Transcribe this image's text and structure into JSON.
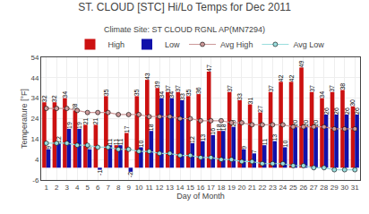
{
  "chart_data": {
    "type": "bar",
    "title": "ST. CLOUD [STC] Hi/Lo Temps for Dec 2011",
    "subtitle": "Climate Site: ST CLOUD RGNL AP(MN7294)",
    "x_label": "Day of Month",
    "y_label": "Temperature [°F]",
    "x": [
      1,
      2,
      3,
      4,
      5,
      6,
      7,
      8,
      9,
      10,
      11,
      12,
      13,
      14,
      15,
      16,
      17,
      18,
      19,
      20,
      21,
      22,
      23,
      24,
      25,
      26,
      27,
      28,
      29,
      30,
      31
    ],
    "series": [
      {
        "name": "High",
        "type": "bar",
        "color": "#CC1111",
        "data_labels": true,
        "values": [
          32,
          32,
          34,
          28,
          21,
          21,
          35,
          11,
          17,
          35,
          43,
          39,
          37,
          37,
          35,
          36,
          47,
          18,
          37,
          33,
          31,
          27,
          37,
          42,
          42,
          49,
          37,
          34,
          37,
          38,
          30
        ]
      },
      {
        "name": "Low",
        "type": "bar",
        "color": "#1111AA",
        "data_labels": true,
        "values": [
          9,
          12,
          19,
          19,
          9,
          -1,
          11,
          11,
          -2,
          10,
          18,
          34,
          34,
          33,
          12,
          13,
          16,
          18,
          20,
          9,
          7,
          11,
          13,
          10,
          20,
          20,
          20,
          26,
          26,
          26,
          26
        ]
      },
      {
        "name": "Avg High",
        "type": "line",
        "marker": "circle",
        "color": "#CC9999",
        "values": [
          29,
          29,
          29,
          28,
          27,
          27,
          27,
          26,
          26,
          26,
          25,
          25,
          25,
          24,
          24,
          23,
          23,
          23,
          22,
          22,
          21,
          21,
          21,
          21,
          20,
          20,
          20,
          20,
          19,
          19,
          19
        ]
      },
      {
        "name": "Avg Low",
        "type": "line",
        "marker": "circle",
        "color": "#99DDDD",
        "values": [
          12,
          12,
          12,
          11,
          11,
          10,
          10,
          9,
          9,
          8,
          8,
          7,
          7,
          6,
          6,
          5,
          5,
          4,
          4,
          3,
          3,
          2,
          2,
          2,
          1,
          1,
          0,
          0,
          -1,
          -1,
          -1
        ]
      }
    ],
    "xlim": [
      0.5,
      31.5
    ],
    "xticks": [
      1,
      2,
      3,
      4,
      5,
      6,
      7,
      8,
      9,
      10,
      11,
      12,
      13,
      14,
      15,
      16,
      17,
      18,
      19,
      20,
      21,
      22,
      23,
      24,
      25,
      26,
      27,
      28,
      29,
      30,
      31
    ],
    "ylim": [
      -6,
      54
    ],
    "yticks": [
      -6,
      4,
      14,
      24,
      34,
      44,
      54
    ],
    "grid": true,
    "legend": "top"
  }
}
